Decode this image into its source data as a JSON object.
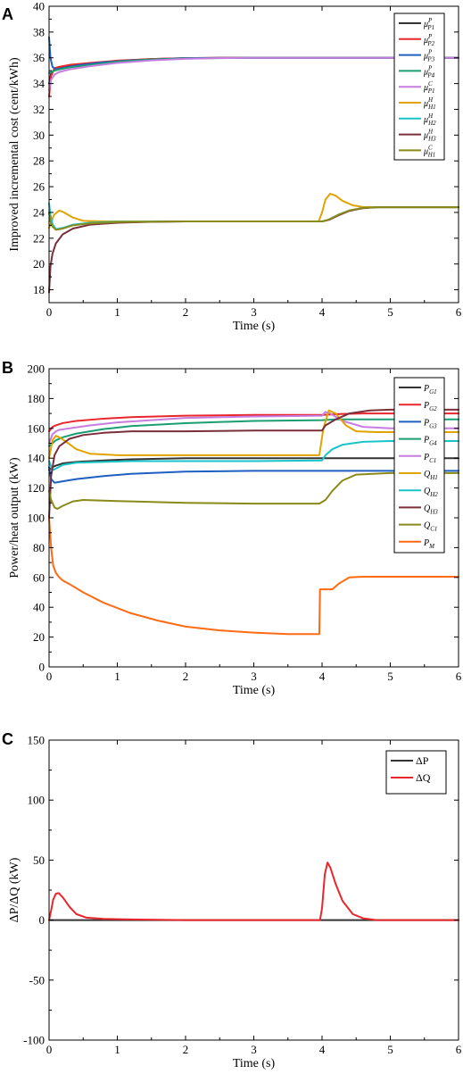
{
  "chart_data": [
    {
      "type": "line",
      "panel_label": "A",
      "xlabel": "Time (s)",
      "ylabel": "Improved incremental cost (cent/kWh)",
      "xlim": [
        0,
        6
      ],
      "ylim": [
        17,
        40
      ],
      "xticks": [
        0,
        1,
        2,
        3,
        4,
        5,
        6
      ],
      "yticks": [
        18,
        20,
        22,
        24,
        26,
        28,
        30,
        32,
        34,
        36,
        38,
        40
      ],
      "grid": false,
      "legend": "top-right",
      "series": [
        {
          "name": "μ^P_P1",
          "color": "#333333",
          "x": [
            0,
            0.03,
            0.08,
            0.15,
            0.3,
            0.6,
            1.0,
            1.5,
            2.0,
            2.5,
            3.0,
            4.0,
            5.0,
            6.0
          ],
          "y": [
            34.0,
            34.8,
            35.1,
            35.2,
            35.35,
            35.55,
            35.75,
            35.9,
            35.97,
            36.0,
            36.0,
            36.0,
            36.0,
            36.0
          ]
        },
        {
          "name": "μ^P_P2",
          "color": "#e8262b",
          "x": [
            0,
            0.03,
            0.08,
            0.15,
            0.3,
            0.6,
            1.0,
            1.5,
            2.0,
            2.5,
            3.0,
            4.0,
            5.0,
            6.0
          ],
          "y": [
            33.0,
            34.6,
            35.2,
            35.3,
            35.45,
            35.6,
            35.78,
            35.9,
            35.97,
            36.0,
            36.0,
            36.0,
            36.0,
            36.0
          ]
        },
        {
          "name": "μ^P_P3",
          "color": "#1f5fc0",
          "x": [
            0,
            0.02,
            0.05,
            0.1,
            0.2,
            0.4,
            0.8,
            1.2,
            2.0,
            3.0,
            4.0,
            5.0,
            6.0
          ],
          "y": [
            37.6,
            36.0,
            35.3,
            35.1,
            35.2,
            35.4,
            35.65,
            35.8,
            35.97,
            36.0,
            36.0,
            36.0,
            36.0
          ]
        },
        {
          "name": "μ^P_P4",
          "color": "#1a9e72",
          "x": [
            0,
            0.03,
            0.08,
            0.15,
            0.3,
            0.6,
            1.0,
            1.5,
            2.0,
            3.0,
            4.0,
            5.0,
            6.0
          ],
          "y": [
            34.8,
            34.9,
            35.0,
            35.1,
            35.25,
            35.45,
            35.7,
            35.87,
            35.95,
            36.0,
            36.0,
            36.0,
            36.0
          ]
        },
        {
          "name": "μ^C_P1",
          "color": "#c77ce0",
          "x": [
            0,
            0.03,
            0.08,
            0.15,
            0.3,
            0.6,
            1.0,
            1.5,
            2.0,
            2.5,
            3.0,
            4.0,
            5.0,
            6.0
          ],
          "y": [
            33.5,
            34.3,
            34.7,
            34.9,
            35.1,
            35.35,
            35.6,
            35.8,
            35.92,
            35.98,
            36.0,
            36.0,
            36.0,
            36.0
          ]
        },
        {
          "name": "μ^H_H1",
          "color": "#e0a300",
          "x": [
            0,
            0.03,
            0.07,
            0.15,
            0.22,
            0.35,
            0.5,
            0.8,
            1.2,
            2.0,
            3.0,
            3.95,
            4.0,
            4.05,
            4.12,
            4.2,
            4.3,
            4.45,
            4.6,
            4.8,
            5.0,
            5.5,
            6.0
          ],
          "y": [
            22.8,
            23.2,
            23.8,
            24.15,
            24.0,
            23.6,
            23.35,
            23.3,
            23.3,
            23.3,
            23.3,
            23.3,
            24.0,
            25.0,
            25.45,
            25.3,
            24.9,
            24.55,
            24.42,
            24.4,
            24.4,
            24.4,
            24.4
          ]
        },
        {
          "name": "μ^H_H2",
          "color": "#19c4c9",
          "x": [
            0,
            0.02,
            0.05,
            0.1,
            0.2,
            0.35,
            0.6,
            1.0,
            2.0,
            3.0,
            4.0,
            4.1,
            4.25,
            4.4,
            4.6,
            4.8,
            5.0,
            6.0
          ],
          "y": [
            24.7,
            23.8,
            23.1,
            22.7,
            22.8,
            23.05,
            23.2,
            23.28,
            23.3,
            23.3,
            23.3,
            23.45,
            23.85,
            24.15,
            24.35,
            24.4,
            24.4,
            24.4
          ]
        },
        {
          "name": "μ^H_H3",
          "color": "#7a2e3a",
          "x": [
            0,
            0.02,
            0.05,
            0.1,
            0.2,
            0.35,
            0.6,
            1.0,
            1.5,
            2.0,
            3.0,
            4.0,
            4.1,
            4.25,
            4.4,
            4.6,
            4.8,
            5.0,
            6.0
          ],
          "y": [
            17.8,
            19.8,
            20.8,
            21.6,
            22.3,
            22.75,
            23.05,
            23.2,
            23.27,
            23.3,
            23.3,
            23.3,
            23.42,
            23.8,
            24.12,
            24.33,
            24.4,
            24.4,
            24.4
          ]
        },
        {
          "name": "μ^C_H1",
          "color": "#8a8a1a",
          "x": [
            0,
            0.02,
            0.05,
            0.1,
            0.2,
            0.35,
            0.6,
            1.0,
            2.0,
            3.0,
            4.0,
            4.1,
            4.25,
            4.4,
            4.6,
            4.8,
            5.0,
            6.0
          ],
          "y": [
            24.0,
            23.3,
            22.9,
            22.65,
            22.75,
            23.0,
            23.15,
            23.25,
            23.3,
            23.3,
            23.3,
            23.45,
            23.85,
            24.15,
            24.35,
            24.4,
            24.4,
            24.4
          ]
        }
      ]
    },
    {
      "type": "line",
      "panel_label": "B",
      "xlabel": "Time (s)",
      "ylabel": "Power/heat output (kW)",
      "xlim": [
        0,
        6
      ],
      "ylim": [
        0,
        200
      ],
      "xticks": [
        0,
        1,
        2,
        3,
        4,
        5,
        6
      ],
      "yticks": [
        0,
        20,
        40,
        60,
        80,
        100,
        120,
        140,
        160,
        180,
        200
      ],
      "grid": false,
      "legend": "top-right",
      "series": [
        {
          "name": "P_G1",
          "color": "#333333",
          "x": [
            0,
            0.05,
            0.1,
            0.2,
            0.4,
            0.8,
            1.2,
            2.0,
            3.0,
            4.0,
            5.0,
            6.0
          ],
          "y": [
            132,
            134,
            135,
            136.5,
            137.5,
            138.5,
            139.2,
            140,
            140,
            140,
            140,
            140
          ]
        },
        {
          "name": "P_G2",
          "color": "#e8262b",
          "x": [
            0,
            0.05,
            0.1,
            0.2,
            0.4,
            0.8,
            1.2,
            2.0,
            3.0,
            4.0,
            4.2,
            4.6,
            5.0,
            6.0
          ],
          "y": [
            158,
            161,
            162,
            163.5,
            165,
            166.5,
            167.5,
            168.5,
            169,
            169,
            169.5,
            170,
            170,
            170
          ]
        },
        {
          "name": "P_G3",
          "color": "#1f5fc0",
          "x": [
            0,
            0.03,
            0.08,
            0.2,
            0.4,
            0.8,
            1.2,
            2.0,
            3.0,
            4.0,
            5.0,
            6.0
          ],
          "y": [
            134,
            126,
            123.5,
            124.5,
            126,
            128,
            129.5,
            131,
            131.5,
            131.5,
            131.5,
            131.5
          ]
        },
        {
          "name": "P_G4",
          "color": "#1a9e72",
          "x": [
            0,
            0.05,
            0.1,
            0.2,
            0.4,
            0.8,
            1.2,
            2.0,
            3.0,
            4.0,
            4.2,
            4.6,
            5.0,
            6.0
          ],
          "y": [
            148,
            150,
            152,
            154,
            156.5,
            159.5,
            161.5,
            163.5,
            165,
            165.5,
            166,
            166,
            166,
            166
          ]
        },
        {
          "name": "P_C1",
          "color": "#c77ce0",
          "x": [
            0,
            0.05,
            0.1,
            0.15,
            0.3,
            0.6,
            1.0,
            2.0,
            3.0,
            4.0,
            4.05,
            4.12,
            4.3,
            4.6,
            5.0,
            6.0
          ],
          "y": [
            150,
            156,
            158,
            159,
            160,
            162,
            164,
            167,
            168,
            168.5,
            171,
            170,
            165,
            161,
            160,
            160
          ]
        },
        {
          "name": "Q_H1",
          "color": "#e0a300",
          "x": [
            0,
            0.05,
            0.1,
            0.15,
            0.25,
            0.4,
            0.6,
            1.0,
            2.0,
            3.0,
            3.96,
            4.02,
            4.1,
            4.2,
            4.35,
            4.5,
            4.8,
            5.0,
            6.0
          ],
          "y": [
            140,
            152,
            155,
            154,
            151,
            146,
            143,
            142,
            142,
            142,
            142,
            160,
            172,
            170,
            162,
            158,
            157.5,
            157.5,
            157.5
          ]
        },
        {
          "name": "Q_H2",
          "color": "#19c4c9",
          "x": [
            0,
            0.05,
            0.1,
            0.2,
            0.4,
            0.8,
            1.2,
            2.0,
            3.0,
            4.0,
            4.05,
            4.15,
            4.3,
            4.6,
            5.0,
            6.0
          ],
          "y": [
            138,
            132,
            133,
            135.5,
            137,
            137.5,
            138,
            138,
            138,
            138.5,
            142,
            146,
            149,
            151,
            151.5,
            151.5
          ]
        },
        {
          "name": "Q_H3",
          "color": "#7a2e3a",
          "x": [
            0,
            0.03,
            0.08,
            0.15,
            0.3,
            0.5,
            0.8,
            1.2,
            2.0,
            3.0,
            4.0,
            4.05,
            4.2,
            4.4,
            4.7,
            5.0,
            6.0
          ],
          "y": [
            100,
            128,
            142,
            148,
            153,
            155.5,
            157,
            158,
            158,
            158.5,
            158.5,
            162,
            166,
            170,
            172,
            172.5,
            172.5
          ]
        },
        {
          "name": "Q_C1",
          "color": "#8a8a1a",
          "x": [
            0,
            0.03,
            0.08,
            0.12,
            0.2,
            0.35,
            0.5,
            0.8,
            1.2,
            2.0,
            3.0,
            3.96,
            4.05,
            4.15,
            4.3,
            4.5,
            5.0,
            6.0
          ],
          "y": [
            118,
            112,
            107,
            106,
            108,
            111,
            112,
            111.5,
            111,
            110,
            109.5,
            109.5,
            112,
            118,
            125,
            129,
            130,
            130
          ]
        },
        {
          "name": "P_M",
          "color": "#ff6a13",
          "x": [
            0,
            0.03,
            0.06,
            0.1,
            0.15,
            0.2,
            0.3,
            0.5,
            0.8,
            1.2,
            1.6,
            2.0,
            2.5,
            3.0,
            3.5,
            3.96,
            3.97,
            4.05,
            4.15,
            4.25,
            4.4,
            4.6,
            5.0,
            6.0
          ],
          "y": [
            100,
            80,
            68,
            63,
            60,
            58,
            55.5,
            50,
            43,
            36,
            31,
            27,
            24.5,
            23,
            22,
            22,
            52,
            52,
            52,
            56,
            60,
            60.5,
            60.5,
            60.5
          ]
        }
      ]
    },
    {
      "type": "line",
      "panel_label": "C",
      "xlabel": "Time (s)",
      "ylabel": "ΔP/ΔQ (kW)",
      "xlim": [
        0,
        6
      ],
      "ylim": [
        -100,
        150
      ],
      "xticks": [
        0,
        1,
        2,
        3,
        4,
        5,
        6
      ],
      "yticks": [
        -100,
        -50,
        0,
        50,
        100,
        150
      ],
      "grid": false,
      "legend": "top-right",
      "series": [
        {
          "name": "ΔP",
          "color": "#333333",
          "x": [
            0,
            6
          ],
          "y": [
            0,
            0
          ]
        },
        {
          "name": "ΔQ",
          "color": "#e8262b",
          "x": [
            0,
            0.03,
            0.06,
            0.1,
            0.14,
            0.2,
            0.3,
            0.4,
            0.55,
            0.8,
            1.2,
            2.0,
            3.0,
            3.97,
            4.0,
            4.04,
            4.08,
            4.12,
            4.2,
            4.3,
            4.45,
            4.6,
            4.8,
            5.0,
            6.0
          ],
          "y": [
            0,
            8,
            17,
            22,
            22.5,
            19,
            11,
            5,
            2,
            1,
            0.5,
            0,
            0,
            0,
            10,
            38,
            48,
            44,
            30,
            16,
            5,
            1.5,
            0,
            0,
            0
          ]
        }
      ]
    }
  ]
}
